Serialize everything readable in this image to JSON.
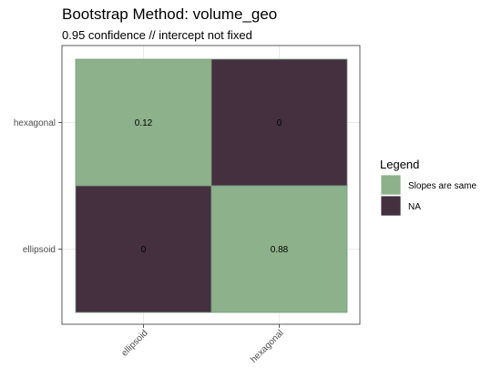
{
  "chart_data": {
    "type": "heatmap",
    "title": "Bootstrap Method: volume_geo",
    "subtitle": "0.95 confidence // intercept not fixed",
    "xlabel": "",
    "ylabel": "",
    "x_categories": [
      "ellipsoid",
      "hexagonal"
    ],
    "y_categories": [
      "hexagonal",
      "ellipsoid"
    ],
    "cells": [
      {
        "x": "ellipsoid",
        "y": "hexagonal",
        "value": "0.12",
        "group": "Slopes are same"
      },
      {
        "x": "hexagonal",
        "y": "hexagonal",
        "value": "0",
        "group": "NA"
      },
      {
        "x": "ellipsoid",
        "y": "ellipsoid",
        "value": "0",
        "group": "NA"
      },
      {
        "x": "hexagonal",
        "y": "ellipsoid",
        "value": "0.88",
        "group": "Slopes are same"
      }
    ],
    "legend": {
      "title": "Legend",
      "position": "right",
      "entries": [
        {
          "label": "Slopes are same",
          "color": "#8db18b"
        },
        {
          "label": "NA",
          "color": "#44303f"
        }
      ]
    },
    "grid": true,
    "colors": {
      "panel_border": "#333333",
      "grid": "#ebebeb",
      "cell_border": "#7a9a82"
    }
  }
}
